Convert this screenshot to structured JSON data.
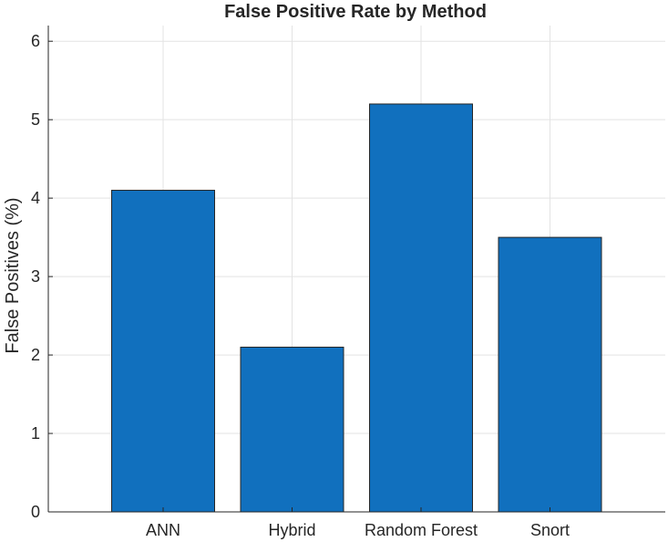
{
  "chart_data": {
    "type": "bar",
    "title": "False Positive Rate by Method",
    "xlabel": "",
    "ylabel": "False Positives (%)",
    "categories": [
      "ANN",
      "Hybrid",
      "Random Forest",
      "Snort"
    ],
    "values": [
      4.1,
      2.1,
      5.2,
      3.5
    ],
    "ylim": [
      0,
      6.2
    ],
    "yticks": [
      "0",
      "1",
      "2",
      "3",
      "4",
      "5",
      "6"
    ],
    "grid": true,
    "bar_color": "#1170BE"
  }
}
